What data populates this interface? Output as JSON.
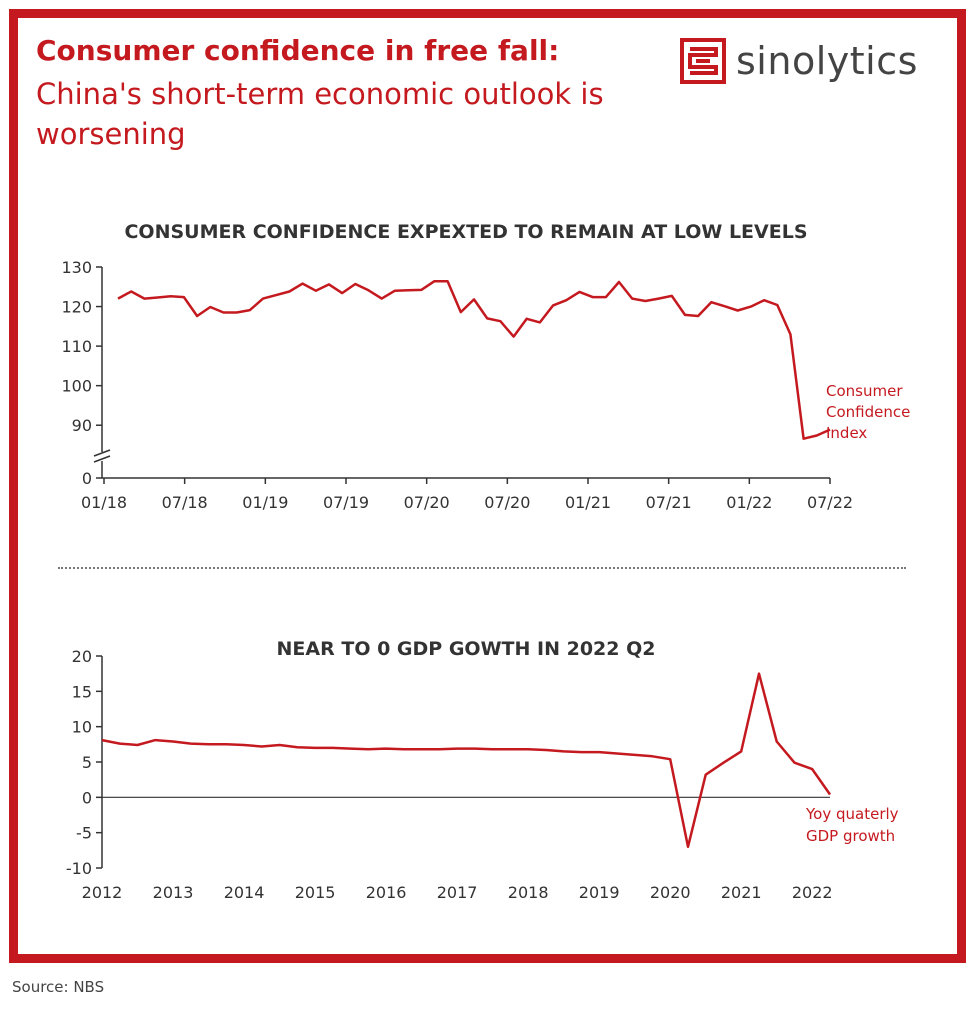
{
  "header": {
    "title_bold": "Consumer confidence in free fall:",
    "title_sub": "China's short-term economic outlook is worsening",
    "logo_text": "sinolytics"
  },
  "footer": {
    "source": "Source: NBS"
  },
  "colors": {
    "accent": "#c41a1f",
    "text": "#333333",
    "axis": "#333333"
  },
  "chart_data": [
    {
      "type": "line",
      "title": "CONSUMER CONFIDENCE EXPEXTED TO REMAIN AT LOW LEVELS",
      "xlabel": "",
      "ylabel": "",
      "x_ticks": [
        "01/18",
        "07/18",
        "01/19",
        "07/19",
        "07/20",
        "07/20",
        "01/21",
        "07/21",
        "01/22",
        "07/22"
      ],
      "y_ticks": [
        0,
        90,
        100,
        110,
        120,
        130
      ],
      "ylim": [
        85,
        130
      ],
      "axis_break": true,
      "grid": false,
      "series": [
        {
          "name": "Consumer Confidence Index",
          "x": [
            "2018-01",
            "2018-02",
            "2018-03",
            "2018-04",
            "2018-05",
            "2018-06",
            "2018-07",
            "2018-08",
            "2018-09",
            "2018-10",
            "2018-11",
            "2018-12",
            "2019-01",
            "2019-02",
            "2019-03",
            "2019-04",
            "2019-05",
            "2019-06",
            "2019-07",
            "2019-08",
            "2019-09",
            "2019-10",
            "2019-11",
            "2019-12",
            "2020-01",
            "2020-02",
            "2020-03",
            "2020-04",
            "2020-05",
            "2020-06",
            "2020-07",
            "2020-08",
            "2020-09",
            "2020-10",
            "2020-11",
            "2020-12",
            "2021-01",
            "2021-02",
            "2021-03",
            "2021-04",
            "2021-05",
            "2021-06",
            "2021-07",
            "2021-08",
            "2021-09",
            "2021-10",
            "2021-11",
            "2021-12",
            "2022-01",
            "2022-02",
            "2022-03",
            "2022-04",
            "2022-05",
            "2022-06",
            "2022-07"
          ],
          "values": [
            122.0,
            123.8,
            122.0,
            122.3,
            122.6,
            122.4,
            117.6,
            119.9,
            118.5,
            118.5,
            119.1,
            122.0,
            122.9,
            123.8,
            125.8,
            124.0,
            125.6,
            123.4,
            125.7,
            124.1,
            122.0,
            124.0,
            124.1,
            124.2,
            126.4,
            126.4,
            118.6,
            121.8,
            117.0,
            116.3,
            112.4,
            116.9,
            116.0,
            120.3,
            121.6,
            123.7,
            122.4,
            122.4,
            126.2,
            122.0,
            121.4,
            122.0,
            122.7,
            117.9,
            117.6,
            121.1,
            120.1,
            119.0,
            120.0,
            121.6,
            120.4,
            113.0,
            86.6,
            87.4,
            88.9
          ]
        }
      ]
    },
    {
      "type": "line",
      "title": "NEAR TO 0 GDP GOWTH IN 2022 Q2",
      "xlabel": "",
      "ylabel": "",
      "x_ticks": [
        "2012",
        "2013",
        "2014",
        "2015",
        "2016",
        "2017",
        "2018",
        "2019",
        "2020",
        "2021",
        "2022"
      ],
      "y_ticks": [
        20,
        15,
        10,
        5,
        0,
        -5,
        -10
      ],
      "ylim": [
        -10,
        20
      ],
      "grid": false,
      "series": [
        {
          "name": "Yoy quaterly GDP growth",
          "x": [
            2012.0,
            2012.25,
            2012.5,
            2012.75,
            2013.0,
            2013.25,
            2013.5,
            2013.75,
            2014.0,
            2014.25,
            2014.5,
            2014.75,
            2015.0,
            2015.25,
            2015.5,
            2015.75,
            2016.0,
            2016.25,
            2016.5,
            2016.75,
            2017.0,
            2017.25,
            2017.5,
            2017.75,
            2018.0,
            2018.25,
            2018.5,
            2018.75,
            2019.0,
            2019.25,
            2019.5,
            2019.75,
            2020.0,
            2020.25,
            2020.5,
            2020.75,
            2021.0,
            2021.25,
            2021.5,
            2021.75,
            2022.0,
            2022.25
          ],
          "values": [
            8.1,
            7.6,
            7.4,
            8.1,
            7.9,
            7.6,
            7.5,
            7.5,
            7.4,
            7.2,
            7.4,
            7.1,
            7.0,
            7.0,
            6.9,
            6.8,
            6.9,
            6.8,
            6.8,
            6.8,
            6.9,
            6.9,
            6.8,
            6.8,
            6.8,
            6.7,
            6.5,
            6.4,
            6.4,
            6.2,
            6.0,
            5.8,
            5.4,
            -7.0,
            3.2,
            4.9,
            6.5,
            17.5,
            7.9,
            4.9,
            4.0,
            0.4
          ]
        }
      ]
    }
  ]
}
